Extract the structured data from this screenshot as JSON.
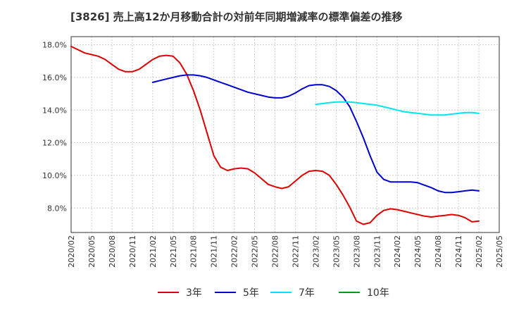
{
  "title": "[3826]  売上高12か月移動合計の対前年同期増減率の標準偏差の推移",
  "chart_data": {
    "type": "line",
    "x_ticks": [
      "2020/02",
      "2020/05",
      "2020/08",
      "2020/11",
      "2021/02",
      "2021/05",
      "2021/08",
      "2021/11",
      "2022/02",
      "2022/05",
      "2022/08",
      "2022/11",
      "2023/02",
      "2023/05",
      "2023/08",
      "2023/11",
      "2024/02",
      "2024/05",
      "2024/08",
      "2024/11",
      "2025/02",
      "2025/05"
    ],
    "y_ticks": [
      "8.0%",
      "10.0%",
      "12.0%",
      "14.0%",
      "16.0%",
      "18.0%"
    ],
    "y_tick_values": [
      8,
      10,
      12,
      14,
      16,
      18
    ],
    "ylim": [
      6.5,
      18.5
    ],
    "grid": true,
    "legend_position": "bottom",
    "series": [
      {
        "name": "3年",
        "color": "#dd0000",
        "x": [
          "2020/02",
          "2020/03",
          "2020/04",
          "2020/05",
          "2020/06",
          "2020/07",
          "2020/08",
          "2020/09",
          "2020/10",
          "2020/11",
          "2020/12",
          "2021/01",
          "2021/02",
          "2021/03",
          "2021/04",
          "2021/05",
          "2021/06",
          "2021/07",
          "2021/08",
          "2021/09",
          "2021/10",
          "2021/11",
          "2021/12",
          "2022/01",
          "2022/02",
          "2022/03",
          "2022/04",
          "2022/05",
          "2022/06",
          "2022/07",
          "2022/08",
          "2022/09",
          "2022/10",
          "2022/11",
          "2022/12",
          "2023/01",
          "2023/02",
          "2023/03",
          "2023/04",
          "2023/05",
          "2023/06",
          "2023/07",
          "2023/08",
          "2023/09",
          "2023/10",
          "2023/11",
          "2023/12",
          "2024/01",
          "2024/02",
          "2024/03",
          "2024/04",
          "2024/05",
          "2024/06",
          "2024/07",
          "2024/08",
          "2024/09",
          "2024/10",
          "2024/11",
          "2024/12",
          "2025/01",
          "2025/02"
        ],
        "values": [
          17.9,
          17.7,
          17.5,
          17.4,
          17.3,
          17.1,
          16.8,
          16.5,
          16.35,
          16.35,
          16.5,
          16.8,
          17.1,
          17.3,
          17.35,
          17.3,
          16.9,
          16.2,
          15.2,
          14.0,
          12.6,
          11.2,
          10.5,
          10.3,
          10.4,
          10.45,
          10.4,
          10.15,
          9.8,
          9.45,
          9.3,
          9.2,
          9.3,
          9.65,
          10.0,
          10.25,
          10.3,
          10.25,
          10.0,
          9.45,
          8.8,
          8.05,
          7.2,
          7.0,
          7.1,
          7.55,
          7.85,
          7.95,
          7.9,
          7.8,
          7.7,
          7.6,
          7.5,
          7.45,
          7.5,
          7.55,
          7.6,
          7.55,
          7.4,
          7.15,
          7.2
        ]
      },
      {
        "name": "5年",
        "color": "#0000cc",
        "x": [
          "2021/02",
          "2021/03",
          "2021/04",
          "2021/05",
          "2021/06",
          "2021/07",
          "2021/08",
          "2021/09",
          "2021/10",
          "2021/11",
          "2021/12",
          "2022/01",
          "2022/02",
          "2022/03",
          "2022/04",
          "2022/05",
          "2022/06",
          "2022/07",
          "2022/08",
          "2022/09",
          "2022/10",
          "2022/11",
          "2022/12",
          "2023/01",
          "2023/02",
          "2023/03",
          "2023/04",
          "2023/05",
          "2023/06",
          "2023/07",
          "2023/08",
          "2023/09",
          "2023/10",
          "2023/11",
          "2023/12",
          "2024/01",
          "2024/02",
          "2024/03",
          "2024/04",
          "2024/05",
          "2024/06",
          "2024/07",
          "2024/08",
          "2024/09",
          "2024/10",
          "2024/11",
          "2024/12",
          "2025/01",
          "2025/02"
        ],
        "values": [
          15.7,
          15.8,
          15.9,
          16.0,
          16.1,
          16.15,
          16.15,
          16.1,
          16.0,
          15.85,
          15.7,
          15.55,
          15.4,
          15.25,
          15.1,
          15.0,
          14.9,
          14.8,
          14.75,
          14.75,
          14.85,
          15.05,
          15.3,
          15.5,
          15.55,
          15.55,
          15.45,
          15.2,
          14.8,
          14.2,
          13.3,
          12.3,
          11.2,
          10.2,
          9.75,
          9.6,
          9.6,
          9.6,
          9.6,
          9.55,
          9.4,
          9.25,
          9.05,
          8.95,
          8.95,
          9.0,
          9.05,
          9.1,
          9.05
        ]
      },
      {
        "name": "7年",
        "color": "#00e5ee",
        "x": [
          "2023/02",
          "2023/03",
          "2023/04",
          "2023/05",
          "2023/06",
          "2023/07",
          "2023/08",
          "2023/09",
          "2023/10",
          "2023/11",
          "2023/12",
          "2024/01",
          "2024/02",
          "2024/03",
          "2024/04",
          "2024/05",
          "2024/06",
          "2024/07",
          "2024/08",
          "2024/09",
          "2024/10",
          "2024/11",
          "2024/12",
          "2025/01",
          "2025/02"
        ],
        "values": [
          14.35,
          14.4,
          14.45,
          14.5,
          14.5,
          14.5,
          14.45,
          14.4,
          14.35,
          14.3,
          14.2,
          14.1,
          14.0,
          13.9,
          13.85,
          13.8,
          13.75,
          13.7,
          13.7,
          13.7,
          13.75,
          13.8,
          13.85,
          13.85,
          13.8
        ]
      },
      {
        "name": "10年",
        "color": "#228b22",
        "x": [],
        "values": []
      }
    ]
  }
}
